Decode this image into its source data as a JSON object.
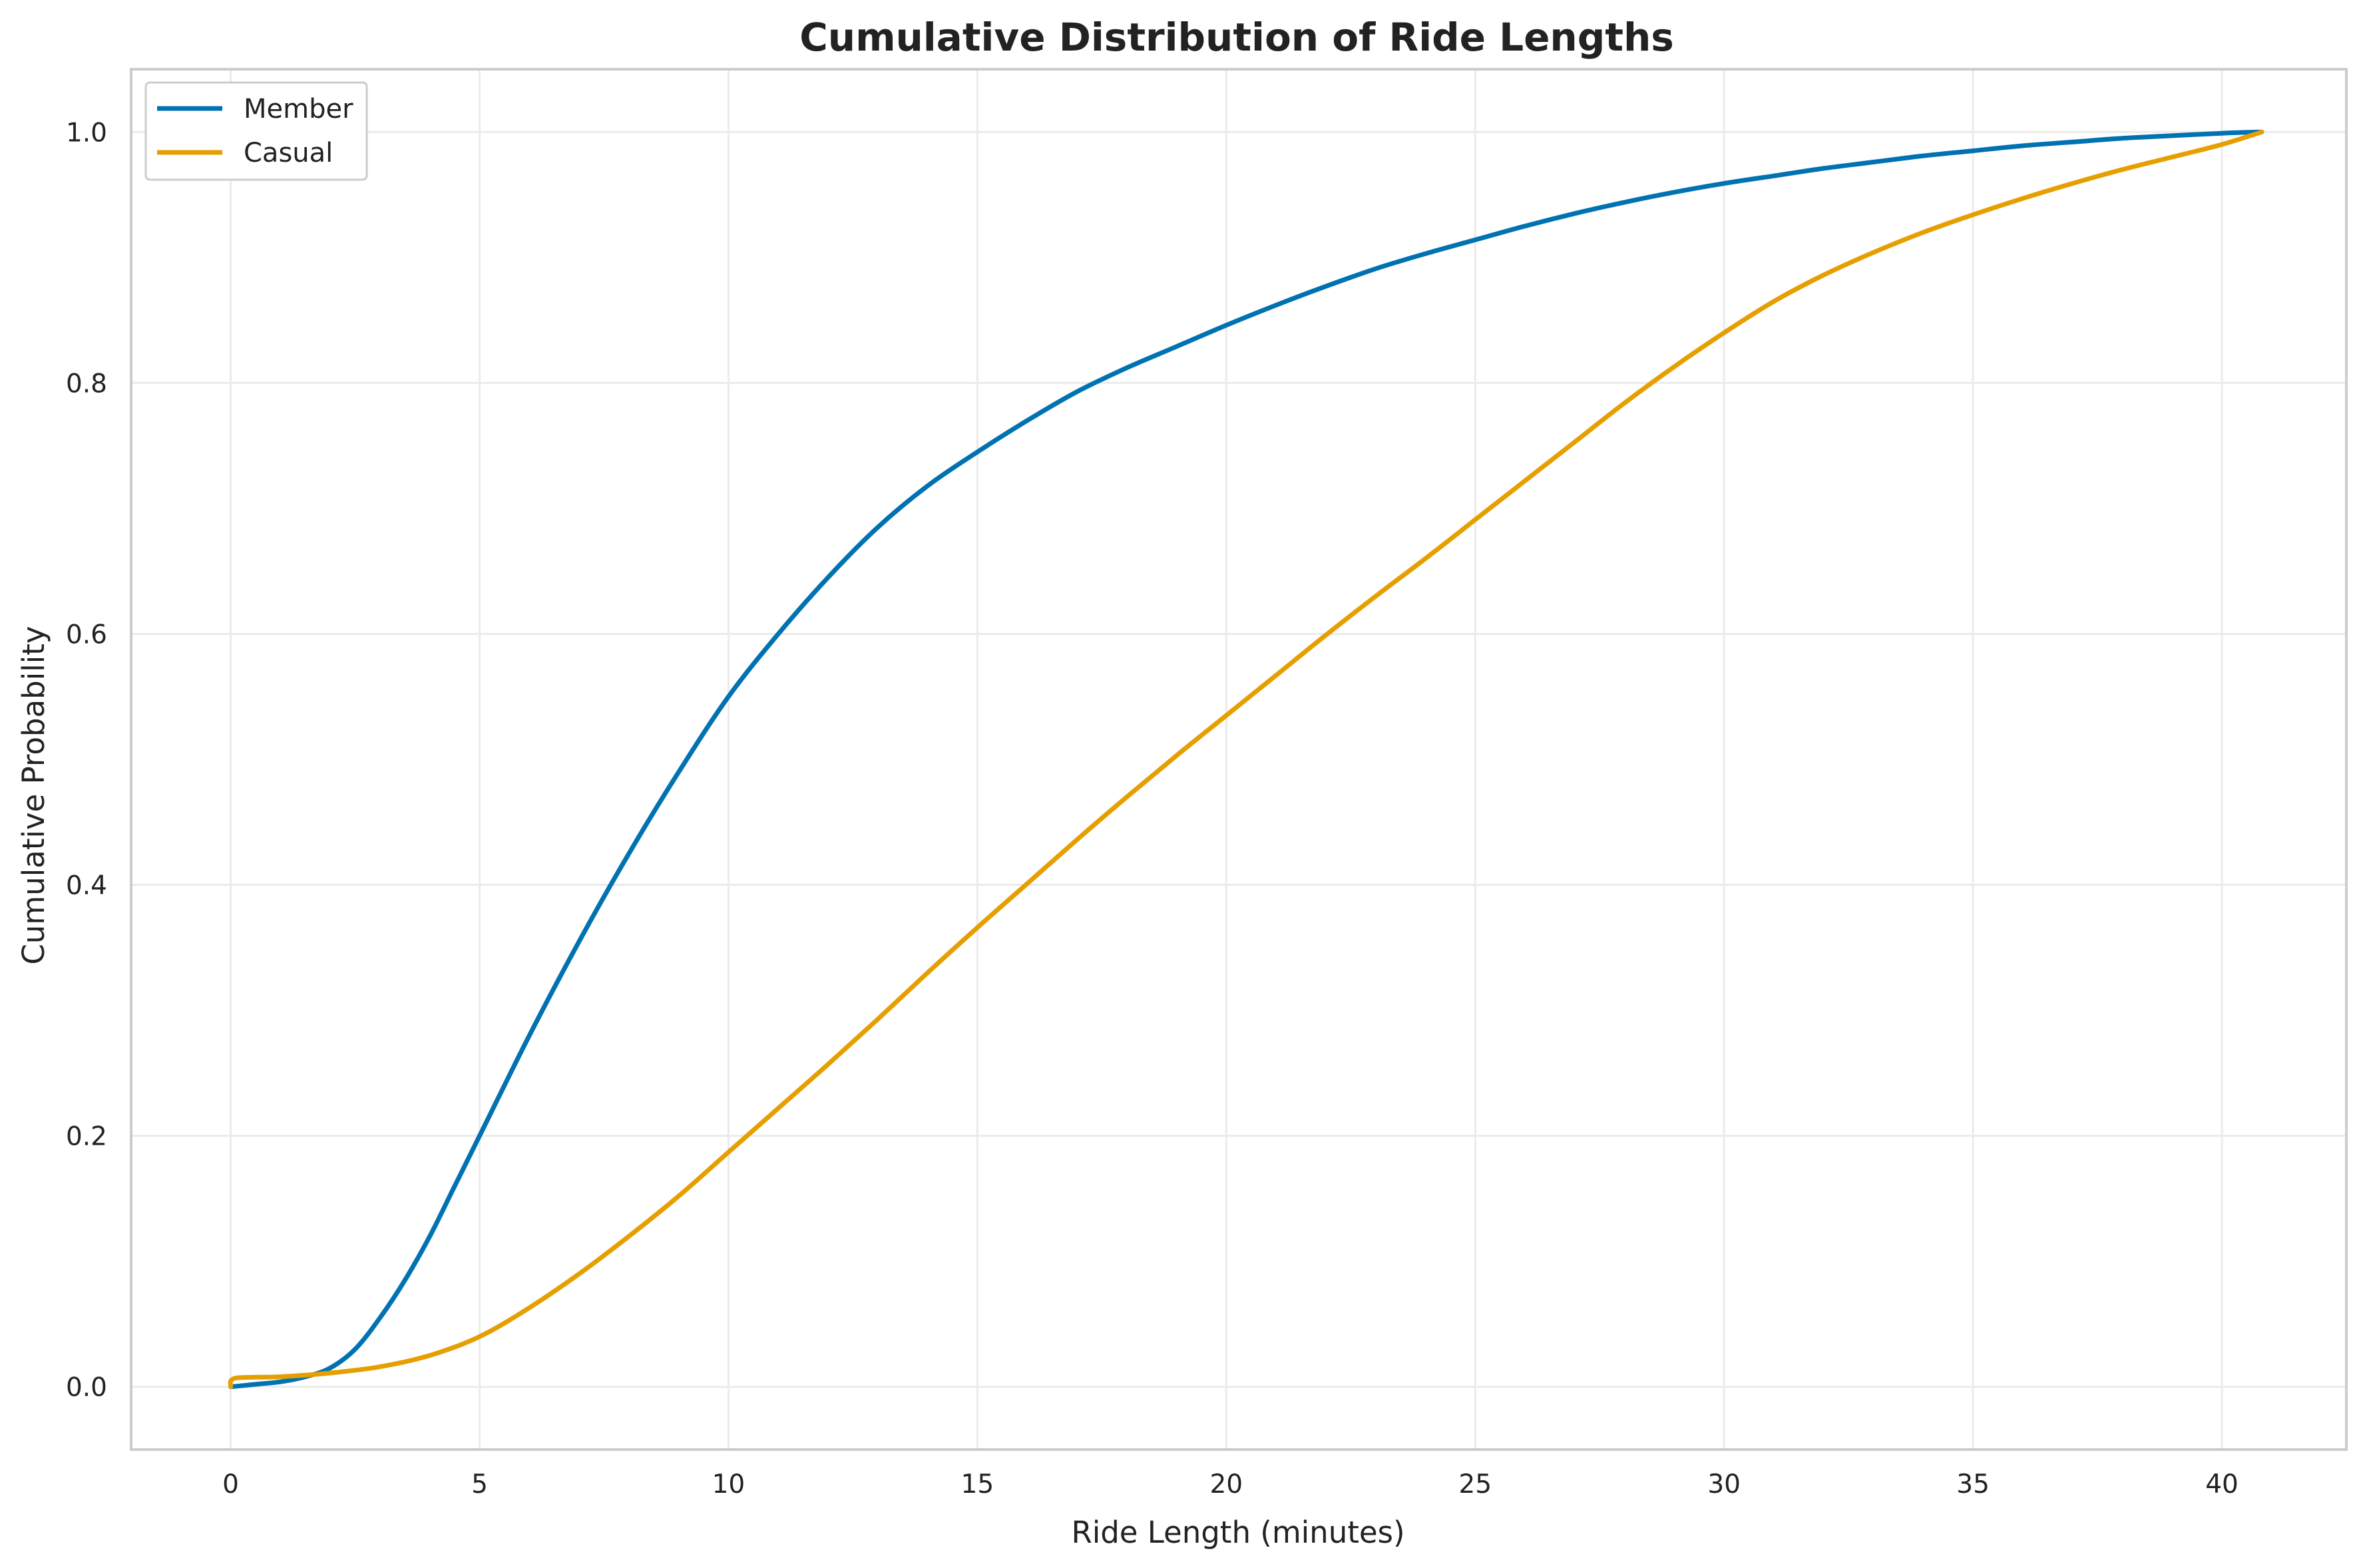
{
  "chart_data": {
    "type": "line",
    "title": "Cumulative Distribution of Ride Lengths",
    "xlabel": "Ride Length (minutes)",
    "ylabel": "Cumulative Probability",
    "xlim": [
      -2,
      42.5
    ],
    "ylim": [
      -0.05,
      1.05
    ],
    "x_ticks": [
      0,
      5,
      10,
      15,
      20,
      25,
      30,
      35,
      40
    ],
    "y_ticks": [
      0.0,
      0.2,
      0.4,
      0.6,
      0.8,
      1.0
    ],
    "x_tick_labels": [
      "0",
      "5",
      "10",
      "15",
      "20",
      "25",
      "30",
      "35",
      "40"
    ],
    "y_tick_labels": [
      "0.0",
      "0.2",
      "0.4",
      "0.6",
      "0.8",
      "1.0"
    ],
    "grid": true,
    "legend": "top-left",
    "series": [
      {
        "name": "Member",
        "color": "#0072B2",
        "x": [
          0,
          0.5,
          1,
          1.5,
          2,
          2.5,
          3,
          3.5,
          4,
          4.5,
          5,
          6,
          7,
          8,
          9,
          10,
          11,
          12,
          13,
          14,
          15,
          16,
          17,
          18,
          19,
          20,
          21,
          22,
          23,
          24,
          25,
          26,
          27,
          28,
          29,
          30,
          31,
          32,
          33,
          34,
          35,
          36,
          37,
          38,
          39,
          40,
          40.8
        ],
        "y": [
          0,
          0.002,
          0.004,
          0.008,
          0.015,
          0.03,
          0.055,
          0.085,
          0.12,
          0.16,
          0.2,
          0.28,
          0.355,
          0.425,
          0.49,
          0.55,
          0.6,
          0.645,
          0.685,
          0.718,
          0.745,
          0.77,
          0.793,
          0.812,
          0.829,
          0.846,
          0.862,
          0.877,
          0.891,
          0.903,
          0.914,
          0.925,
          0.935,
          0.944,
          0.952,
          0.959,
          0.965,
          0.971,
          0.976,
          0.981,
          0.985,
          0.989,
          0.992,
          0.995,
          0.997,
          0.999,
          1.0
        ]
      },
      {
        "name": "Casual",
        "color": "#E69F00",
        "x": [
          0,
          0.1,
          1,
          2,
          3,
          4,
          5,
          6,
          7,
          8,
          9,
          10,
          11,
          12,
          13,
          14,
          15,
          16,
          17,
          18,
          19,
          20,
          21,
          22,
          23,
          24,
          25,
          26,
          27,
          28,
          29,
          30,
          31,
          32,
          33,
          34,
          35,
          36,
          37,
          38,
          39,
          40,
          40.8
        ],
        "y": [
          0,
          0.007,
          0.008,
          0.011,
          0.016,
          0.025,
          0.04,
          0.063,
          0.09,
          0.12,
          0.152,
          0.187,
          0.222,
          0.257,
          0.293,
          0.33,
          0.366,
          0.401,
          0.436,
          0.47,
          0.503,
          0.535,
          0.567,
          0.599,
          0.63,
          0.66,
          0.691,
          0.722,
          0.753,
          0.784,
          0.813,
          0.84,
          0.865,
          0.886,
          0.904,
          0.92,
          0.934,
          0.947,
          0.959,
          0.97,
          0.98,
          0.99,
          1.0
        ]
      }
    ]
  }
}
